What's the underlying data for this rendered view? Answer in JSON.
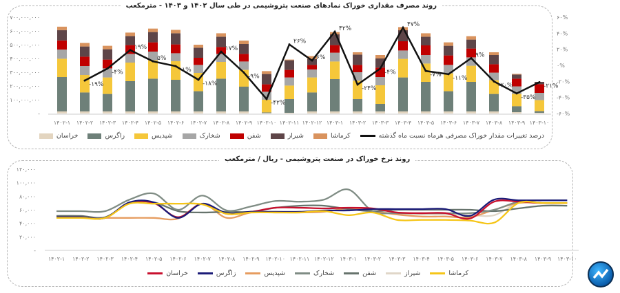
{
  "colors": {
    "bars": [
      "#e3d5c0",
      "#6e8079",
      "#f5c73a",
      "#a6a6a6",
      "#c00000",
      "#5e4548",
      "#d9935e"
    ],
    "line": "#111111",
    "rates": [
      "#c8102e",
      "#1b1b78",
      "#e69c5f",
      "#7f8c84",
      "#66736c",
      "#e0d6c8",
      "#f5c518"
    ]
  },
  "chart_data": [
    {
      "type": "bar",
      "stacked": true,
      "title": "روند مصرف مقداری خوراک نمادهای صنعت پتروشیمی در طی سال ۱۴۰۲ و ۱۴۰۳ - مترمکعب",
      "categories": [
        "۱۴۰۲-۱",
        "۱۴۰۲-۲",
        "۱۴۰۲-۳",
        "۱۴۰۲-۴",
        "۱۴۰۲-۵",
        "۱۴۰۲-۶",
        "۱۴۰۲-۷",
        "۱۴۰۲-۸",
        "۱۴۰۲-۹",
        "۱۴۰۲-۱۰",
        "۱۴۰۲-۱۱",
        "۱۴۰۲-۱۲",
        "۱۴۰۳-۱",
        "۱۴۰۳-۲",
        "۱۴۰۳-۳",
        "۱۴۰۳-۴",
        "۱۴۰۳-۵",
        "۱۴۰۳-۶",
        "۱۴۰۳-۷",
        "۱۴۰۳-۸",
        "۱۴۰۳-۹",
        "۱۴۰۳-۱۰"
      ],
      "ylim": [
        0,
        700000000
      ],
      "yticks": [
        "۷۰۰,۰۰۰,۰۰۰",
        "۶۰۰,۰۰۰,۰۰۰",
        "۵۰۰,۰۰۰,۰۰۰",
        "۴۰۰,۰۰۰,۰۰۰",
        "۳۰۰,۰۰۰,۰۰۰",
        "۲۰۰,۰۰۰,۰۰۰",
        "۱۰۰,۰۰۰,۰۰۰",
        "-"
      ],
      "y2lim": [
        -60,
        60
      ],
      "y2ticks": [
        "۶۰%",
        "۴۰%",
        "۲۰%",
        "۰%",
        "-۲۰%",
        "-۴۰%",
        "-۶۰%"
      ],
      "legend": "bottom",
      "series_unit": "million m3",
      "series": [
        {
          "name": "خراسان",
          "values": [
            15,
            15,
            15,
            15,
            15,
            15,
            15,
            15,
            15,
            3,
            5,
            15,
            15,
            15,
            15,
            15,
            15,
            15,
            15,
            15,
            10,
            5
          ]
        },
        {
          "name": "زاگرس",
          "values": [
            250,
            138,
            127,
            220,
            238,
            230,
            147,
            238,
            180,
            5,
            100,
            138,
            235,
            90,
            55,
            247,
            215,
            147,
            215,
            127,
            43,
            12
          ]
        },
        {
          "name": "شپدیس",
          "values": [
            133,
            127,
            120,
            135,
            134,
            135,
            133,
            122,
            122,
            92,
            98,
            109,
            128,
            133,
            135,
            135,
            133,
            130,
            117,
            100,
            89,
            80
          ]
        },
        {
          "name": "شخارک",
          "values": [
            67,
            65,
            66,
            63,
            63,
            58,
            58,
            58,
            61,
            58,
            59,
            58,
            64,
            62,
            60,
            61,
            62,
            61,
            61,
            55,
            55,
            53
          ]
        },
        {
          "name": "شفن",
          "values": [
            66,
            68,
            64,
            64,
            67,
            64,
            52,
            50,
            55,
            54,
            55,
            33,
            55,
            53,
            68,
            67,
            70,
            69,
            64,
            61,
            56,
            63
          ]
        },
        {
          "name": "شیراز",
          "values": [
            75,
            74,
            75,
            66,
            75,
            81,
            73,
            75,
            72,
            75,
            70,
            42,
            78,
            75,
            67,
            80,
            63,
            70,
            65,
            67,
            30,
            17
          ]
        },
        {
          "name": "کرماشا",
          "values": [
            25,
            26,
            25,
            25,
            25,
            25,
            22,
            25,
            25,
            21,
            5,
            22,
            17,
            17,
            25,
            23,
            25,
            25,
            25,
            20,
            5,
            0
          ]
        }
      ],
      "line": {
        "name": "درصد تغییرات مقدار خوراک مصرفی هرماه نسبت ماه گذشته",
        "values": [
          null,
          -19,
          -4,
          19,
          5,
          -1,
          -18,
          17,
          -9,
          -42,
          26,
          6,
          42,
          -24,
          -4,
          47,
          -7,
          -11,
          9,
          -20,
          -35,
          -21
        ],
        "labels": [
          null,
          "-۱۹%",
          "-۴%",
          "۱۹%",
          "۵%",
          "-۱%",
          "-۱۸%",
          "۱۷%",
          "-۹%",
          "-۴۲%",
          "۲۶%",
          "۶%",
          "۴۲%",
          "-۲۴%",
          "-۴%",
          "۴۷%",
          "-۷%",
          "-۱۱%",
          "۹%",
          "-۲۰%",
          "-۳۵%",
          "-۲۱%"
        ]
      }
    },
    {
      "type": "line",
      "title": "روند نرخ خوراک در صنعت پتروشیمی - ریال / مترمکعب",
      "categories": [
        "۱۴۰۲-۱",
        "۱۴۰۲-۲",
        "۱۴۰۲-۳",
        "۱۴۰۲-۴",
        "۱۴۰۲-۵",
        "۱۴۰۲-۶",
        "۱۴۰۲-۷",
        "۱۴۰۲-۸",
        "۱۴۰۲-۹",
        "۱۴۰۲-۱۰",
        "۱۴۰۲-۱۱",
        "۱۴۰۲-۱۲",
        "۱۴۰۳-۱",
        "۱۴۰۳-۲",
        "۱۴۰۳-۳",
        "۱۴۰۳-۴",
        "۱۴۰۳-۵",
        "۱۴۰۳-۶",
        "۱۴۰۳-۷",
        "۱۴۰۳-۸",
        "۱۴۰۳-۹",
        "۱۴۰۳-۱۰"
      ],
      "ylim": [
        0,
        120000
      ],
      "yticks": [
        "۱۲۰,۰۰۰",
        "۱۰۰,۰۰۰",
        "۸۰,۰۰۰",
        "۶۰,۰۰۰",
        "۴۰,۰۰۰",
        "۲۰,۰۰۰",
        "-"
      ],
      "legend": "bottom",
      "series": [
        {
          "name": "خراسان",
          "values": [
            49,
            49,
            48,
            70,
            70,
            49,
            69,
            54,
            57,
            63,
            63,
            62,
            63,
            62,
            56,
            55,
            55,
            47,
            72,
            72,
            70,
            70
          ]
        },
        {
          "name": "زاگرس",
          "values": [
            49,
            49,
            48,
            71,
            71,
            48,
            69,
            55,
            57,
            57,
            57,
            59,
            59,
            61,
            61,
            61,
            61,
            51,
            75,
            74,
            74,
            74
          ]
        },
        {
          "name": "شپدیس",
          "values": [
            48,
            48,
            48,
            48,
            48,
            47,
            69,
            48,
            56,
            56,
            56,
            57,
            62,
            58,
            53,
            50,
            50,
            49,
            60,
            70,
            70,
            70
          ]
        },
        {
          "name": "شخارک",
          "values": [
            58,
            58,
            58,
            75,
            84,
            60,
            81,
            59,
            65,
            73,
            72,
            75,
            90,
            58,
            55,
            55,
            55,
            55,
            60,
            72,
            74,
            74
          ]
        },
        {
          "name": "شفن",
          "values": [
            51,
            51,
            49,
            70,
            71,
            58,
            56,
            57,
            57,
            63,
            66,
            66,
            61,
            58,
            60,
            60,
            60,
            60,
            58,
            62,
            66,
            66
          ]
        },
        {
          "name": "شیراز",
          "values": [
            49,
            49,
            48,
            70,
            69,
            69,
            68,
            56,
            56,
            57,
            57,
            58,
            60,
            58,
            55,
            53,
            53,
            52,
            52,
            70,
            70,
            70
          ]
        },
        {
          "name": "کرماشا",
          "values": [
            48,
            48,
            48,
            69,
            69,
            69,
            68,
            54,
            56,
            56,
            56,
            58,
            52,
            56,
            45,
            45,
            45,
            44,
            41,
            70,
            70,
            70
          ]
        }
      ],
      "value_unit": "thousand"
    }
  ]
}
